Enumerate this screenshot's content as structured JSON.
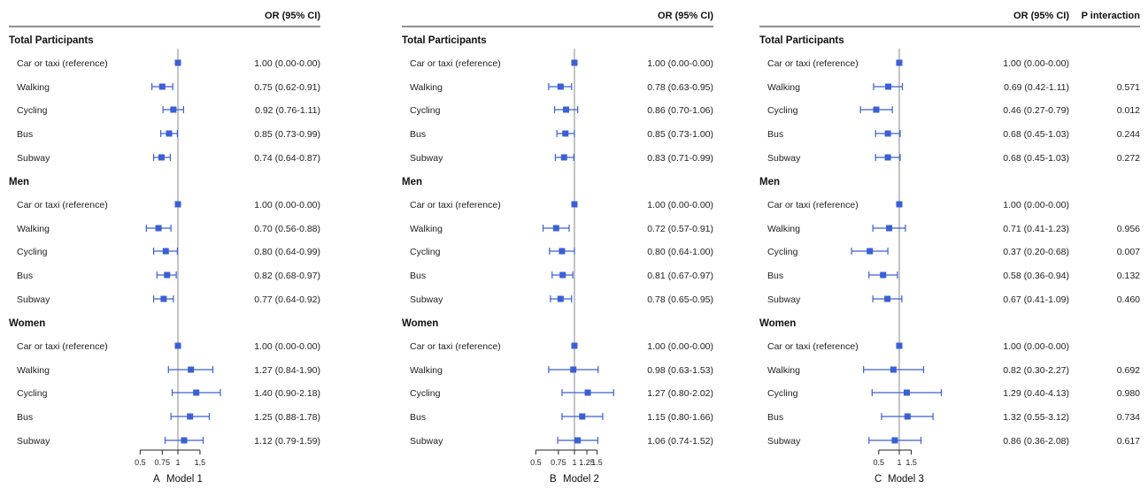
{
  "header": {
    "or_label": "OR (95% CI)",
    "p_label": "P interaction"
  },
  "accent_color": "#3b5fd4",
  "groups": [
    "Total Participants",
    "Men",
    "Women"
  ],
  "row_labels": [
    "Car or taxi (reference)",
    "Walking",
    "Cycling",
    "Bus",
    "Subway"
  ],
  "chart_data": [
    {
      "type": "forest",
      "panel_letter": "A",
      "xlabel": "Model 1",
      "xticks": [
        "0.5",
        "0.75",
        "1",
        "1.5"
      ],
      "xtick_values": [
        0.5,
        0.75,
        1,
        1.5
      ],
      "xlim": [
        0.5,
        2.18
      ],
      "reference_line": 1,
      "groups": [
        {
          "name": "Total Participants",
          "rows": [
            {
              "label": "Car or taxi (reference)",
              "or": 1.0,
              "lo": 1.0,
              "hi": 1.0,
              "text": "1.00 (0.00-0.00)"
            },
            {
              "label": "Walking",
              "or": 0.75,
              "lo": 0.62,
              "hi": 0.91,
              "text": "0.75 (0.62-0.91)"
            },
            {
              "label": "Cycling",
              "or": 0.92,
              "lo": 0.76,
              "hi": 1.11,
              "text": "0.92 (0.76-1.11)"
            },
            {
              "label": "Bus",
              "or": 0.85,
              "lo": 0.73,
              "hi": 0.99,
              "text": "0.85 (0.73-0.99)"
            },
            {
              "label": "Subway",
              "or": 0.74,
              "lo": 0.64,
              "hi": 0.87,
              "text": "0.74 (0.64-0.87)"
            }
          ]
        },
        {
          "name": "Men",
          "rows": [
            {
              "label": "Car or taxi (reference)",
              "or": 1.0,
              "lo": 1.0,
              "hi": 1.0,
              "text": "1.00 (0.00-0.00)"
            },
            {
              "label": "Walking",
              "or": 0.7,
              "lo": 0.56,
              "hi": 0.88,
              "text": "0.70 (0.56-0.88)"
            },
            {
              "label": "Cycling",
              "or": 0.8,
              "lo": 0.64,
              "hi": 0.99,
              "text": "0.80 (0.64-0.99)"
            },
            {
              "label": "Bus",
              "or": 0.82,
              "lo": 0.68,
              "hi": 0.97,
              "text": "0.82 (0.68-0.97)"
            },
            {
              "label": "Subway",
              "or": 0.77,
              "lo": 0.64,
              "hi": 0.92,
              "text": "0.77 (0.64-0.92)"
            }
          ]
        },
        {
          "name": "Women",
          "rows": [
            {
              "label": "Car or taxi (reference)",
              "or": 1.0,
              "lo": 1.0,
              "hi": 1.0,
              "text": "1.00 (0.00-0.00)"
            },
            {
              "label": "Walking",
              "or": 1.27,
              "lo": 0.84,
              "hi": 1.9,
              "text": "1.27 (0.84-1.90)"
            },
            {
              "label": "Cycling",
              "or": 1.4,
              "lo": 0.9,
              "hi": 2.18,
              "text": "1.40 (0.90-2.18)"
            },
            {
              "label": "Bus",
              "or": 1.25,
              "lo": 0.88,
              "hi": 1.78,
              "text": "1.25 (0.88-1.78)"
            },
            {
              "label": "Subway",
              "or": 1.12,
              "lo": 0.79,
              "hi": 1.59,
              "text": "1.12 (0.79-1.59)"
            }
          ]
        }
      ]
    },
    {
      "type": "forest",
      "panel_letter": "B",
      "xlabel": "Model 2",
      "xticks": [
        "0.5",
        "0.75",
        "1",
        "1.25",
        "1.5"
      ],
      "xtick_values": [
        0.5,
        0.75,
        1,
        1.25,
        1.5
      ],
      "xlim": [
        0.5,
        2.02
      ],
      "reference_line": 1,
      "groups": [
        {
          "name": "Total Participants",
          "rows": [
            {
              "label": "Car or taxi (reference)",
              "or": 1.0,
              "lo": 1.0,
              "hi": 1.0,
              "text": "1.00 (0.00-0.00)"
            },
            {
              "label": "Walking",
              "or": 0.78,
              "lo": 0.63,
              "hi": 0.95,
              "text": "0.78 (0.63-0.95)"
            },
            {
              "label": "Cycling",
              "or": 0.86,
              "lo": 0.7,
              "hi": 1.06,
              "text": "0.86 (0.70-1.06)"
            },
            {
              "label": "Bus",
              "or": 0.85,
              "lo": 0.73,
              "hi": 1.0,
              "text": "0.85 (0.73-1.00)"
            },
            {
              "label": "Subway",
              "or": 0.83,
              "lo": 0.71,
              "hi": 0.99,
              "text": "0.83 (0.71-0.99)"
            }
          ]
        },
        {
          "name": "Men",
          "rows": [
            {
              "label": "Car or taxi (reference)",
              "or": 1.0,
              "lo": 1.0,
              "hi": 1.0,
              "text": "1.00 (0.00-0.00)"
            },
            {
              "label": "Walking",
              "or": 0.72,
              "lo": 0.57,
              "hi": 0.91,
              "text": "0.72 (0.57-0.91)"
            },
            {
              "label": "Cycling",
              "or": 0.8,
              "lo": 0.64,
              "hi": 1.0,
              "text": "0.80 (0.64-1.00)"
            },
            {
              "label": "Bus",
              "or": 0.81,
              "lo": 0.67,
              "hi": 0.97,
              "text": "0.81 (0.67-0.97)"
            },
            {
              "label": "Subway",
              "or": 0.78,
              "lo": 0.65,
              "hi": 0.95,
              "text": "0.78 (0.65-0.95)"
            }
          ]
        },
        {
          "name": "Women",
          "rows": [
            {
              "label": "Car or taxi (reference)",
              "or": 1.0,
              "lo": 1.0,
              "hi": 1.0,
              "text": "1.00 (0.00-0.00)"
            },
            {
              "label": "Walking",
              "or": 0.98,
              "lo": 0.63,
              "hi": 1.53,
              "text": "0.98 (0.63-1.53)"
            },
            {
              "label": "Cycling",
              "or": 1.27,
              "lo": 0.8,
              "hi": 2.02,
              "text": "1.27 (0.80-2.02)"
            },
            {
              "label": "Bus",
              "or": 1.15,
              "lo": 0.8,
              "hi": 1.66,
              "text": "1.15 (0.80-1.66)"
            },
            {
              "label": "Subway",
              "or": 1.06,
              "lo": 0.74,
              "hi": 1.52,
              "text": "1.06 (0.74-1.52)"
            }
          ]
        }
      ]
    },
    {
      "type": "forest",
      "panel_letter": "C",
      "xlabel": "Model 3",
      "xticks": [
        "0.5",
        "1",
        "1.5"
      ],
      "xtick_values": [
        0.5,
        1,
        1.5
      ],
      "xlim": [
        0.2,
        4.13
      ],
      "reference_line": 1,
      "groups": [
        {
          "name": "Total Participants",
          "rows": [
            {
              "label": "Car or taxi (reference)",
              "or": 1.0,
              "lo": 1.0,
              "hi": 1.0,
              "text": "1.00 (0.00-0.00)",
              "p": ""
            },
            {
              "label": "Walking",
              "or": 0.69,
              "lo": 0.42,
              "hi": 1.11,
              "text": "0.69 (0.42-1.11)",
              "p": "0.571"
            },
            {
              "label": "Cycling",
              "or": 0.46,
              "lo": 0.27,
              "hi": 0.79,
              "text": "0.46 (0.27-0.79)",
              "p": "0.012"
            },
            {
              "label": "Bus",
              "or": 0.68,
              "lo": 0.45,
              "hi": 1.03,
              "text": "0.68 (0.45-1.03)",
              "p": "0.244"
            },
            {
              "label": "Subway",
              "or": 0.68,
              "lo": 0.45,
              "hi": 1.03,
              "text": "0.68 (0.45-1.03)",
              "p": "0.272"
            }
          ]
        },
        {
          "name": "Men",
          "rows": [
            {
              "label": "Car or taxi (reference)",
              "or": 1.0,
              "lo": 1.0,
              "hi": 1.0,
              "text": "1.00 (0.00-0.00)",
              "p": ""
            },
            {
              "label": "Walking",
              "or": 0.71,
              "lo": 0.41,
              "hi": 1.23,
              "text": "0.71 (0.41-1.23)",
              "p": "0.956"
            },
            {
              "label": "Cycling",
              "or": 0.37,
              "lo": 0.2,
              "hi": 0.68,
              "text": "0.37 (0.20-0.68)",
              "p": "0.007"
            },
            {
              "label": "Bus",
              "or": 0.58,
              "lo": 0.36,
              "hi": 0.94,
              "text": "0.58 (0.36-0.94)",
              "p": "0.132"
            },
            {
              "label": "Subway",
              "or": 0.67,
              "lo": 0.41,
              "hi": 1.09,
              "text": "0.67 (0.41-1.09)",
              "p": "0.460"
            }
          ]
        },
        {
          "name": "Women",
          "rows": [
            {
              "label": "Car or taxi (reference)",
              "or": 1.0,
              "lo": 1.0,
              "hi": 1.0,
              "text": "1.00 (0.00-0.00)",
              "p": ""
            },
            {
              "label": "Walking",
              "or": 0.82,
              "lo": 0.3,
              "hi": 2.27,
              "text": "0.82 (0.30-2.27)",
              "p": "0.692"
            },
            {
              "label": "Cycling",
              "or": 1.29,
              "lo": 0.4,
              "hi": 4.13,
              "text": "1.29 (0.40-4.13)",
              "p": "0.980"
            },
            {
              "label": "Bus",
              "or": 1.32,
              "lo": 0.55,
              "hi": 3.12,
              "text": "1.32 (0.55-3.12)",
              "p": "0.734"
            },
            {
              "label": "Subway",
              "or": 0.86,
              "lo": 0.36,
              "hi": 2.08,
              "text": "0.86 (0.36-2.08)",
              "p": "0.617"
            }
          ]
        }
      ]
    }
  ]
}
